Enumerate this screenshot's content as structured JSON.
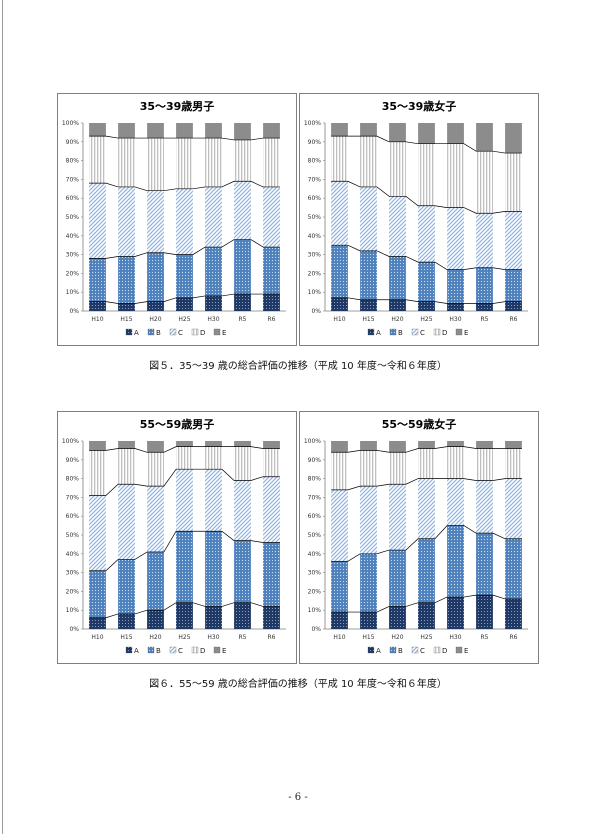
{
  "captions": {
    "fig5": "図５．35～39 歳の総合評価の推移（平成 10 年度～令和６年度）",
    "fig6": "図６．55～59 歳の総合評価の推移（平成 10 年度～令和６年度）"
  },
  "page_number": "- 6 -",
  "colors": {
    "A": "#1f3864",
    "B": "#4f81bd",
    "C": "#8db3e2",
    "D": "#bfbfbf",
    "E": "#7f7f7f"
  },
  "chart_data": [
    {
      "type": "bar",
      "stacked": true,
      "title": "35～39歳男子",
      "categories": [
        "H10",
        "H15",
        "H20",
        "H25",
        "H30",
        "R5",
        "R6"
      ],
      "ylim": [
        0,
        100
      ],
      "yticks": [
        "0%",
        "10%",
        "20%",
        "30%",
        "40%",
        "50%",
        "60%",
        "70%",
        "80%",
        "90%",
        "100%"
      ],
      "legend": [
        "A",
        "B",
        "C",
        "D",
        "E"
      ],
      "legend_position": "bottom",
      "series": [
        {
          "name": "A",
          "values": [
            5,
            4,
            5,
            7,
            8,
            9,
            9
          ]
        },
        {
          "name": "B",
          "values": [
            23,
            25,
            26,
            23,
            26,
            29,
            25
          ]
        },
        {
          "name": "C",
          "values": [
            40,
            37,
            33,
            35,
            32,
            31,
            32
          ]
        },
        {
          "name": "D",
          "values": [
            25,
            26,
            28,
            27,
            26,
            22,
            26
          ]
        },
        {
          "name": "E",
          "values": [
            7,
            8,
            8,
            8,
            8,
            9,
            8
          ]
        }
      ]
    },
    {
      "type": "bar",
      "stacked": true,
      "title": "35～39歳女子",
      "categories": [
        "H10",
        "H15",
        "H20",
        "H25",
        "H30",
        "R5",
        "R6"
      ],
      "ylim": [
        0,
        100
      ],
      "yticks": [
        "0%",
        "10%",
        "20%",
        "30%",
        "40%",
        "50%",
        "60%",
        "70%",
        "80%",
        "90%",
        "100%"
      ],
      "legend": [
        "A",
        "B",
        "C",
        "D",
        "E"
      ],
      "legend_position": "bottom",
      "series": [
        {
          "name": "A",
          "values": [
            7,
            6,
            6,
            5,
            4,
            4,
            5
          ]
        },
        {
          "name": "B",
          "values": [
            28,
            26,
            23,
            21,
            18,
            19,
            17
          ]
        },
        {
          "name": "C",
          "values": [
            34,
            34,
            32,
            30,
            33,
            29,
            31
          ]
        },
        {
          "name": "D",
          "values": [
            24,
            27,
            29,
            33,
            34,
            33,
            31
          ]
        },
        {
          "name": "E",
          "values": [
            7,
            7,
            10,
            11,
            11,
            15,
            16
          ]
        }
      ]
    },
    {
      "type": "bar",
      "stacked": true,
      "title": "55～59歳男子",
      "categories": [
        "H10",
        "H15",
        "H20",
        "H25",
        "H30",
        "R5",
        "R6"
      ],
      "ylim": [
        0,
        100
      ],
      "yticks": [
        "0%",
        "10%",
        "20%",
        "30%",
        "40%",
        "50%",
        "60%",
        "70%",
        "80%",
        "90%",
        "100%"
      ],
      "legend": [
        "A",
        "B",
        "C",
        "D",
        "E"
      ],
      "legend_position": "bottom",
      "series": [
        {
          "name": "A",
          "values": [
            6,
            8,
            10,
            14,
            12,
            14,
            12
          ]
        },
        {
          "name": "B",
          "values": [
            25,
            29,
            31,
            38,
            40,
            33,
            34
          ]
        },
        {
          "name": "C",
          "values": [
            40,
            40,
            35,
            33,
            33,
            32,
            35
          ]
        },
        {
          "name": "D",
          "values": [
            24,
            19,
            18,
            12,
            12,
            18,
            15
          ]
        },
        {
          "name": "E",
          "values": [
            5,
            4,
            6,
            3,
            3,
            3,
            4
          ]
        }
      ]
    },
    {
      "type": "bar",
      "stacked": true,
      "title": "55～59歳女子",
      "categories": [
        "H10",
        "H15",
        "H20",
        "H25",
        "H30",
        "R5",
        "R6"
      ],
      "ylim": [
        0,
        100
      ],
      "yticks": [
        "0%",
        "10%",
        "20%",
        "30%",
        "40%",
        "50%",
        "60%",
        "70%",
        "80%",
        "90%",
        "100%"
      ],
      "legend": [
        "A",
        "B",
        "C",
        "D",
        "E"
      ],
      "legend_position": "bottom",
      "series": [
        {
          "name": "A",
          "values": [
            9,
            9,
            12,
            14,
            17,
            18,
            16
          ]
        },
        {
          "name": "B",
          "values": [
            27,
            31,
            30,
            34,
            38,
            33,
            32
          ]
        },
        {
          "name": "C",
          "values": [
            38,
            36,
            35,
            32,
            25,
            28,
            32
          ]
        },
        {
          "name": "D",
          "values": [
            20,
            19,
            17,
            16,
            17,
            17,
            16
          ]
        },
        {
          "name": "E",
          "values": [
            6,
            5,
            6,
            4,
            3,
            4,
            4
          ]
        }
      ]
    }
  ]
}
